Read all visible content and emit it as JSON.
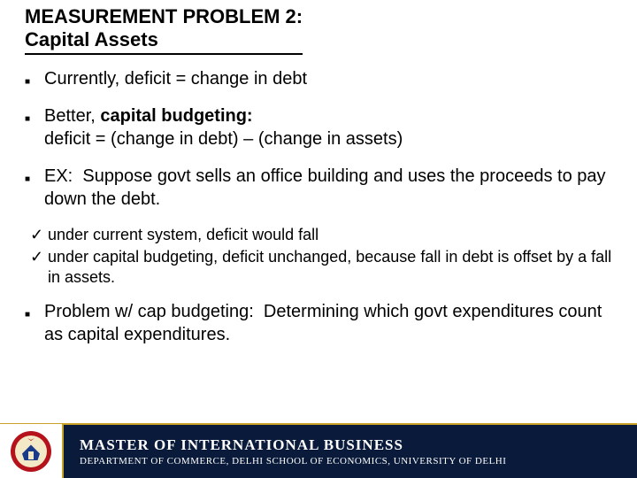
{
  "title": {
    "line1": "MEASUREMENT PROBLEM 2:",
    "line2": "Capital Assets",
    "fontsize": 22,
    "color": "#000000"
  },
  "bullets": {
    "fontsize": 20,
    "color": "#000000",
    "items": [
      {
        "html": "Currently, deficit = change in debt"
      },
      {
        "html": "Better, <span class=\"bold\">capital budgeting:</span><br>deficit = (change in debt) &ndash; (change in assets)"
      },
      {
        "html": "EX:&nbsp; Suppose govt sells an office building and uses the proceeds to pay down the debt."
      }
    ],
    "last": {
      "html": "Problem w/ cap budgeting:&nbsp; Determining which govt expenditures count as capital expenditures."
    }
  },
  "checks": {
    "fontsize": 18,
    "color": "#000000",
    "items": [
      "under current system, deficit would fall",
      "under capital budgeting, deficit unchanged, because fall in debt is offset by a fall in assets."
    ]
  },
  "footer": {
    "bg": "#0a1a3a",
    "accent": "#c9a227",
    "mib": "MASTER OF INTERNATIONAL BUSINESS",
    "mib_fontsize": 17,
    "dept": "DEPARTMENT OF COMMERCE, DELHI SCHOOL OF ECONOMICS, UNIVERSITY OF DELHI",
    "dept_fontsize": 11,
    "text_color": "#ffffff"
  },
  "crest": {
    "ring_color": "#b5121b",
    "inner_color": "#f3e9c6",
    "accent": "#1a3a8a"
  }
}
